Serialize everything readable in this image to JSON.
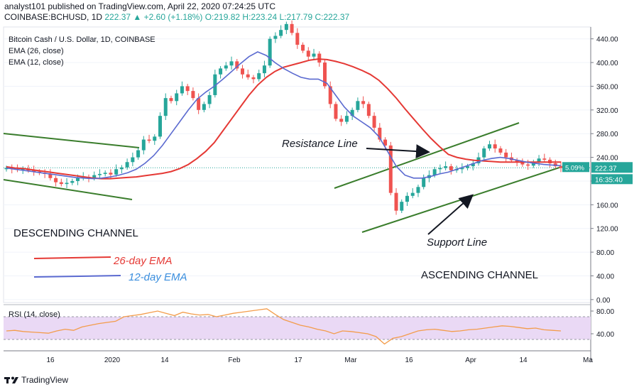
{
  "header": {
    "published": "analyst101 published on TradingView.com, April 22, 2020 07:24:25 UTC",
    "symbol_line": "COINBASE:BCHUSD, 1D",
    "change": "222.37 ▲ +2.60 (+1.18%)",
    "ohlc": "O:219.82 H:223.24 L:217.79 C:222.37"
  },
  "legend": {
    "title": "Bitcoin Cash / U.S. Dollar, 1D, COINBASE",
    "ema26": "EMA (26, close)",
    "ema12": "EMA (12, close)"
  },
  "annotations": {
    "resistance": "Resistance Line",
    "support": "Support Line",
    "descending": "DESCENDING CHANNEL",
    "ascending": "ASCENDING CHANNEL",
    "ema26_label": "26-day EMA",
    "ema12_label": "12-day EMA"
  },
  "price_badge": "222.37",
  "pct_badge": "5.09%",
  "time_badge": "16:35:40",
  "rsi_label": "RSI (14, close)",
  "footer": {
    "brand": "TradingView"
  },
  "colors": {
    "up": "#26a69a",
    "down": "#ef5350",
    "ema26": "#e53935",
    "ema12": "#5b6ad0",
    "channel": "#3a7d2c",
    "rsi_line": "#f39c4b",
    "rsi_band": "#ead9f5",
    "badge": "#26a69a"
  },
  "chart_data": [
    {
      "type": "candlestick",
      "y_ticks": [
        "0.00",
        "40.00",
        "80.00",
        "120.00",
        "160.00",
        "200.00",
        "240.00",
        "280.00",
        "320.00",
        "360.00",
        "400.00",
        "440.00"
      ],
      "x_ticks": [
        "16",
        "2020",
        "14",
        "Feb",
        "17",
        "Mar",
        "16",
        "Apr",
        "14",
        "Ma"
      ],
      "ylim": [
        -5,
        460
      ],
      "close_series": [
        222,
        220,
        219,
        221,
        218,
        216,
        214,
        212,
        205,
        198,
        195,
        197,
        200,
        205,
        207,
        205,
        210,
        212,
        214,
        211,
        220,
        223,
        232,
        240,
        252,
        270,
        268,
        275,
        310,
        340,
        335,
        348,
        360,
        352,
        340,
        320,
        330,
        345,
        380,
        390,
        395,
        402,
        390,
        380,
        375,
        372,
        382,
        395,
        440,
        445,
        455,
        465,
        450,
        430,
        420,
        410,
        415,
        400,
        360,
        330,
        305,
        300,
        310,
        320,
        335,
        330,
        310,
        290,
        270,
        260,
        180,
        150,
        165,
        175,
        180,
        190,
        205,
        210,
        220,
        222,
        225,
        218,
        220,
        222,
        225,
        230,
        240,
        255,
        262,
        255,
        248,
        240,
        235,
        232,
        228,
        226,
        232,
        238,
        236,
        230,
        225,
        222
      ],
      "ema26": [
        224,
        222,
        221,
        219,
        217,
        215,
        213,
        211,
        209,
        207,
        205,
        204,
        204,
        205,
        206,
        207,
        209,
        211,
        213,
        216,
        221,
        228,
        238,
        250,
        265,
        285,
        305,
        325,
        345,
        362,
        375,
        385,
        392,
        396,
        400,
        404,
        406,
        405,
        402,
        398,
        393,
        387,
        380,
        370,
        356,
        340,
        322,
        305,
        288,
        272,
        258,
        245,
        240,
        237,
        235,
        234,
        233,
        232,
        232,
        232,
        232,
        232,
        232,
        232,
        232
      ],
      "ema12": [
        222,
        220,
        218,
        216,
        214,
        212,
        210,
        208,
        206,
        205,
        204,
        205,
        207,
        210,
        214,
        220,
        230,
        243,
        260,
        280,
        300,
        320,
        338,
        350,
        360,
        372,
        385,
        398,
        410,
        418,
        412,
        400,
        390,
        382,
        375,
        372,
        372,
        365,
        345,
        325,
        310,
        300,
        290,
        275,
        250,
        225,
        210,
        205,
        205,
        208,
        212,
        215,
        220,
        225,
        230,
        235,
        238,
        240,
        238,
        235,
        232,
        230,
        228,
        227,
        226
      ],
      "series": [
        {
          "name": "EMA (26, close)"
        },
        {
          "name": "EMA (12, close)"
        }
      ]
    },
    {
      "type": "line",
      "title": "RSI (14, close)",
      "y_ticks": [
        "40.00",
        "80.00"
      ],
      "ylim": [
        15,
        90
      ],
      "values": [
        45,
        46,
        44,
        43,
        42,
        41,
        45,
        48,
        46,
        52,
        55,
        58,
        60,
        62,
        70,
        72,
        74,
        77,
        80,
        76,
        72,
        78,
        75,
        73,
        74,
        70,
        73,
        76,
        78,
        80,
        82,
        84,
        74,
        65,
        60,
        55,
        52,
        48,
        45,
        40,
        45,
        44,
        42,
        40,
        35,
        22,
        32,
        35,
        40,
        45,
        47,
        48,
        46,
        44,
        45,
        47,
        48,
        50,
        52,
        54,
        53,
        51,
        49,
        50,
        47,
        46,
        45
      ]
    }
  ]
}
